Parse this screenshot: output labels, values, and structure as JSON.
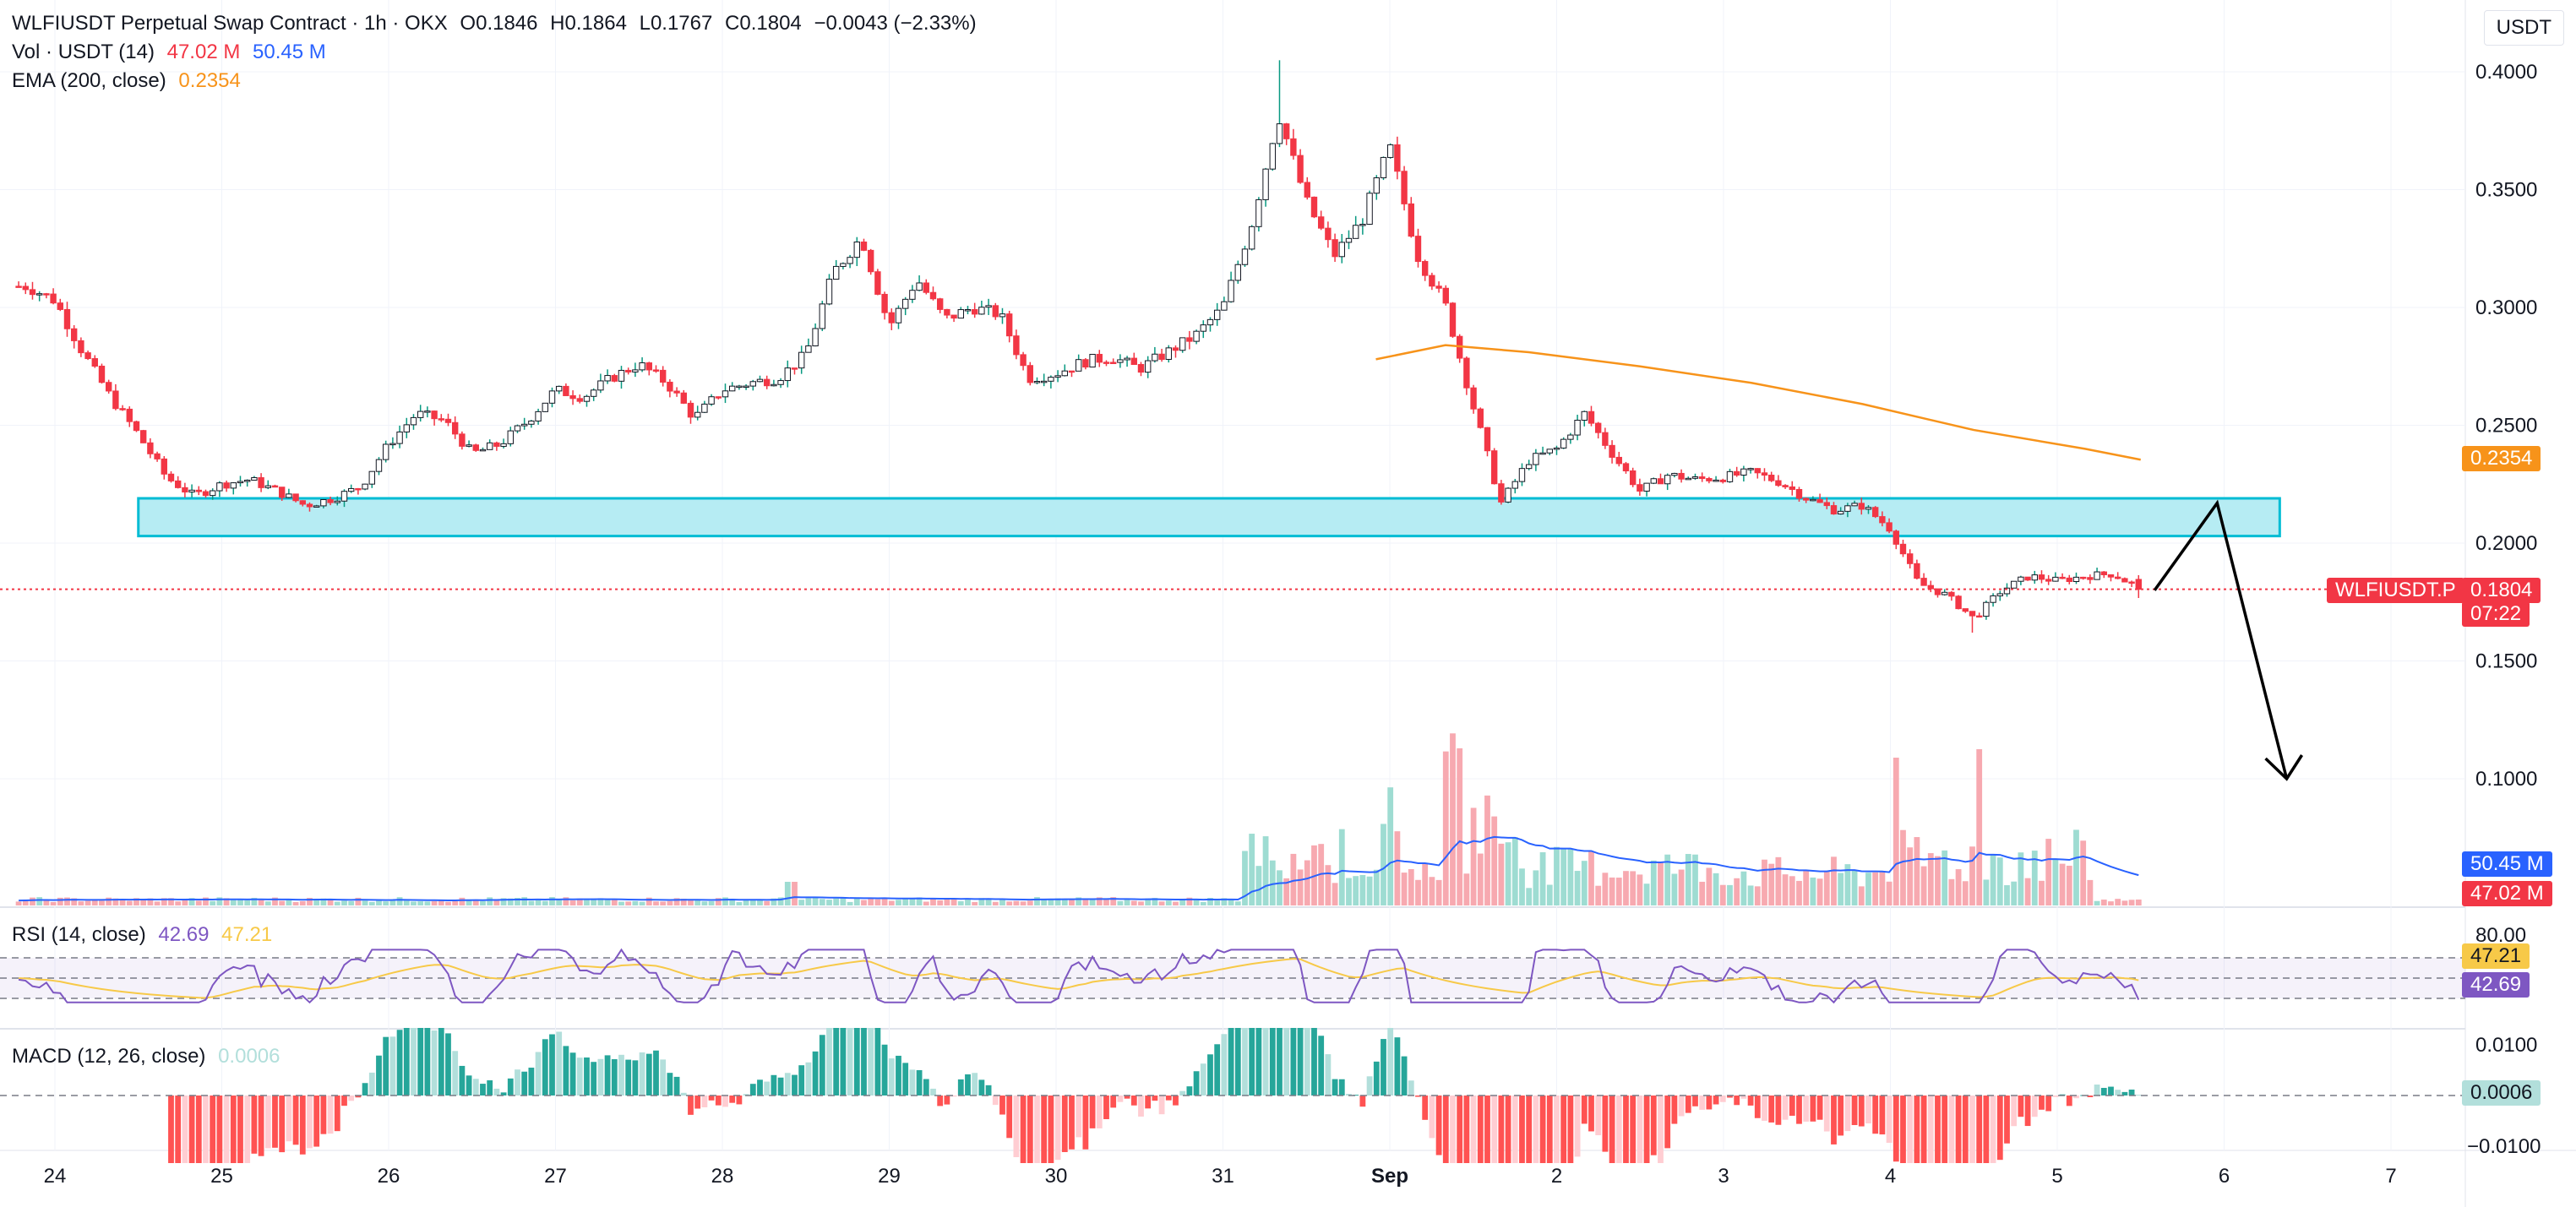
{
  "symbol": {
    "title": "WLFIUSDT Perpetual Swap Contract · 1h · OKX",
    "open": "O0.1846",
    "high": "H0.1864",
    "low": "L0.1767",
    "close": "C0.1804",
    "change": "−0.0043 (−2.33%)"
  },
  "currency": "USDT",
  "legends": {
    "vol_label": "Vol · USDT (14)",
    "vol_value": "47.02 M",
    "vol_ma_value": "50.45 M",
    "ema_label": "EMA (200, close)",
    "ema_value": "0.2354",
    "rsi_label": "RSI (14, close)",
    "rsi_value": "42.69",
    "rsi_ma_value": "47.21",
    "macd_label": "MACD (12, 26, close)",
    "macd_value": "0.0006"
  },
  "tags": {
    "ema": "0.2354",
    "symbol": "WLFIUSDT.P",
    "price": "0.1804",
    "countdown": "07:22",
    "vol_ma": "50.45 M",
    "vol": "47.02 M",
    "rsi_ma": "47.21",
    "rsi": "42.69",
    "macd": "0.0006"
  },
  "colors": {
    "up": "#089981",
    "down": "#f23645",
    "ema": "#f7931a",
    "vol_ma": "#2962ff",
    "rsi": "#7e57c2",
    "rsi_ma": "#f7c948",
    "zone_fill": "#b2ebf2",
    "zone_border": "#00bcd4",
    "macd_pos": "#26a69a",
    "macd_neg": "#ff5252",
    "price_line": "#f23645"
  },
  "chart_data": [
    {
      "type": "candlestick",
      "title": "WLFIUSDT Perpetual Swap Contract · 1h · OKX",
      "x_tick_labels": [
        "24",
        "25",
        "26",
        "27",
        "28",
        "29",
        "30",
        "31",
        "Sep",
        "2",
        "3",
        "4",
        "5",
        "6",
        "7"
      ],
      "y_tick_labels": [
        "0.4000",
        "0.3500",
        "0.3000",
        "0.2500",
        "0.2000",
        "0.1500",
        "0.1000"
      ],
      "ylim": [
        0.095,
        0.405
      ],
      "close_path": [
        {
          "x": "Aug 23 20:00",
          "y": 0.309
        },
        {
          "x": "Aug 24 00:00",
          "y": 0.303
        },
        {
          "x": "Aug 24 04:00",
          "y": 0.281
        },
        {
          "x": "Aug 24 08:00",
          "y": 0.262
        },
        {
          "x": "Aug 24 12:00",
          "y": 0.246
        },
        {
          "x": "Aug 24 16:00",
          "y": 0.228
        },
        {
          "x": "Aug 24 20:00",
          "y": 0.22
        },
        {
          "x": "Aug 25 00:00",
          "y": 0.225
        },
        {
          "x": "Aug 25 04:00",
          "y": 0.227
        },
        {
          "x": "Aug 25 08:00",
          "y": 0.222
        },
        {
          "x": "Aug 25 12:00",
          "y": 0.216
        },
        {
          "x": "Aug 25 16:00",
          "y": 0.219
        },
        {
          "x": "Aug 25 20:00",
          "y": 0.224
        },
        {
          "x": "Aug 26 00:00",
          "y": 0.242
        },
        {
          "x": "Aug 26 04:00",
          "y": 0.255
        },
        {
          "x": "Aug 26 08:00",
          "y": 0.252
        },
        {
          "x": "Aug 26 12:00",
          "y": 0.238
        },
        {
          "x": "Aug 26 16:00",
          "y": 0.242
        },
        {
          "x": "Aug 26 20:00",
          "y": 0.252
        },
        {
          "x": "Aug 27 00:00",
          "y": 0.265
        },
        {
          "x": "Aug 27 04:00",
          "y": 0.262
        },
        {
          "x": "Aug 27 08:00",
          "y": 0.27
        },
        {
          "x": "Aug 27 12:00",
          "y": 0.276
        },
        {
          "x": "Aug 27 16:00",
          "y": 0.268
        },
        {
          "x": "Aug 27 20:00",
          "y": 0.253
        },
        {
          "x": "Aug 28 00:00",
          "y": 0.265
        },
        {
          "x": "Aug 28 04:00",
          "y": 0.268
        },
        {
          "x": "Aug 28 08:00",
          "y": 0.27
        },
        {
          "x": "Aug 28 12:00",
          "y": 0.28
        },
        {
          "x": "Aug 28 16:00",
          "y": 0.315
        },
        {
          "x": "Aug 28 20:00",
          "y": 0.33
        },
        {
          "x": "Aug 29 00:00",
          "y": 0.292
        },
        {
          "x": "Aug 29 04:00",
          "y": 0.312
        },
        {
          "x": "Aug 29 08:00",
          "y": 0.295
        },
        {
          "x": "Aug 29 12:00",
          "y": 0.3
        },
        {
          "x": "Aug 29 16:00",
          "y": 0.297
        },
        {
          "x": "Aug 29 20:00",
          "y": 0.27
        },
        {
          "x": "Aug 30 00:00",
          "y": 0.272
        },
        {
          "x": "Aug 30 04:00",
          "y": 0.277
        },
        {
          "x": "Aug 30 08:00",
          "y": 0.279
        },
        {
          "x": "Aug 30 12:00",
          "y": 0.274
        },
        {
          "x": "Aug 30 16:00",
          "y": 0.281
        },
        {
          "x": "Aug 30 20:00",
          "y": 0.288
        },
        {
          "x": "Aug 31 00:00",
          "y": 0.3
        },
        {
          "x": "Aug 31 04:00",
          "y": 0.334
        },
        {
          "x": "Aug 31 08:00",
          "y": 0.382
        },
        {
          "x": "Aug 31 12:00",
          "y": 0.345
        },
        {
          "x": "Aug 31 16:00",
          "y": 0.322
        },
        {
          "x": "Aug 31 20:00",
          "y": 0.337
        },
        {
          "x": "Sep 01 00:00",
          "y": 0.368
        },
        {
          "x": "Sep 01 04:00",
          "y": 0.322
        },
        {
          "x": "Sep 01 08:00",
          "y": 0.301
        },
        {
          "x": "Sep 01 12:00",
          "y": 0.258
        },
        {
          "x": "Sep 01 16:00",
          "y": 0.217
        },
        {
          "x": "Sep 01 20:00",
          "y": 0.235
        },
        {
          "x": "Sep 02 00:00",
          "y": 0.24
        },
        {
          "x": "Sep 02 04:00",
          "y": 0.255
        },
        {
          "x": "Sep 02 08:00",
          "y": 0.238
        },
        {
          "x": "Sep 02 12:00",
          "y": 0.222
        },
        {
          "x": "Sep 02 16:00",
          "y": 0.229
        },
        {
          "x": "Sep 02 20:00",
          "y": 0.227
        },
        {
          "x": "Sep 03 00:00",
          "y": 0.228
        },
        {
          "x": "Sep 03 04:00",
          "y": 0.23
        },
        {
          "x": "Sep 03 08:00",
          "y": 0.226
        },
        {
          "x": "Sep 03 12:00",
          "y": 0.219
        },
        {
          "x": "Sep 03 16:00",
          "y": 0.214
        },
        {
          "x": "Sep 03 20:00",
          "y": 0.216
        },
        {
          "x": "Sep 04 00:00",
          "y": 0.206
        },
        {
          "x": "Sep 04 04:00",
          "y": 0.183
        },
        {
          "x": "Sep 04 08:00",
          "y": 0.178
        },
        {
          "x": "Sep 04 12:00",
          "y": 0.168
        },
        {
          "x": "Sep 04 16:00",
          "y": 0.18
        },
        {
          "x": "Sep 04 20:00",
          "y": 0.186
        },
        {
          "x": "Sep 05 00:00",
          "y": 0.184
        },
        {
          "x": "Sep 05 04:00",
          "y": 0.186
        },
        {
          "x": "Sep 05 08:00",
          "y": 0.187
        },
        {
          "x": "Sep 05 12:00",
          "y": 0.1804
        }
      ],
      "high": 0.4049,
      "low": 0.162,
      "last": {
        "open": 0.1846,
        "high": 0.1864,
        "low": 0.1767,
        "close": 0.1804,
        "change": -0.0043,
        "change_pct": -2.33
      },
      "ema200": [
        {
          "x": "Aug 31 22:00",
          "y": 0.278
        },
        {
          "x": "Sep 01 08:00",
          "y": 0.284
        },
        {
          "x": "Sep 01 20:00",
          "y": 0.281
        },
        {
          "x": "Sep 02 12:00",
          "y": 0.275
        },
        {
          "x": "Sep 03 04:00",
          "y": 0.268
        },
        {
          "x": "Sep 03 20:00",
          "y": 0.259
        },
        {
          "x": "Sep 04 12:00",
          "y": 0.248
        },
        {
          "x": "Sep 05 04:00",
          "y": 0.24
        },
        {
          "x": "Sep 05 12:00",
          "y": 0.2354
        }
      ],
      "support_zone": {
        "from": "Aug 24 12:00",
        "to": "Sep 06 08:00",
        "low": 0.203,
        "high": 0.219
      },
      "current_price_line": 0.1804,
      "drawn_arrow": [
        {
          "x": "Sep 05 14:00",
          "y": 0.18
        },
        {
          "x": "Sep 05 23:00",
          "y": 0.217
        },
        {
          "x": "Sep 06 09:00",
          "y": 0.1
        }
      ]
    },
    {
      "type": "bar",
      "series": [
        {
          "name": "Vol · USDT (14)",
          "last": "47.02 M"
        },
        {
          "name": "MA",
          "last": "50.45 M"
        }
      ],
      "note_peaks": [
        "Sep 01 morning",
        "Sep 04 morning"
      ]
    },
    {
      "type": "line",
      "series": [
        {
          "name": "RSI (14, close)",
          "last": 42.69
        },
        {
          "name": "MA",
          "last": 47.21
        }
      ],
      "ylim": [
        20,
        85
      ],
      "bands": [
        30,
        70
      ]
    },
    {
      "type": "bar",
      "series": [
        {
          "name": "MACD (12, 26, close)",
          "last": 0.0006
        }
      ],
      "y_tick_labels": [
        "0.0100",
        "−0.0100"
      ]
    }
  ]
}
